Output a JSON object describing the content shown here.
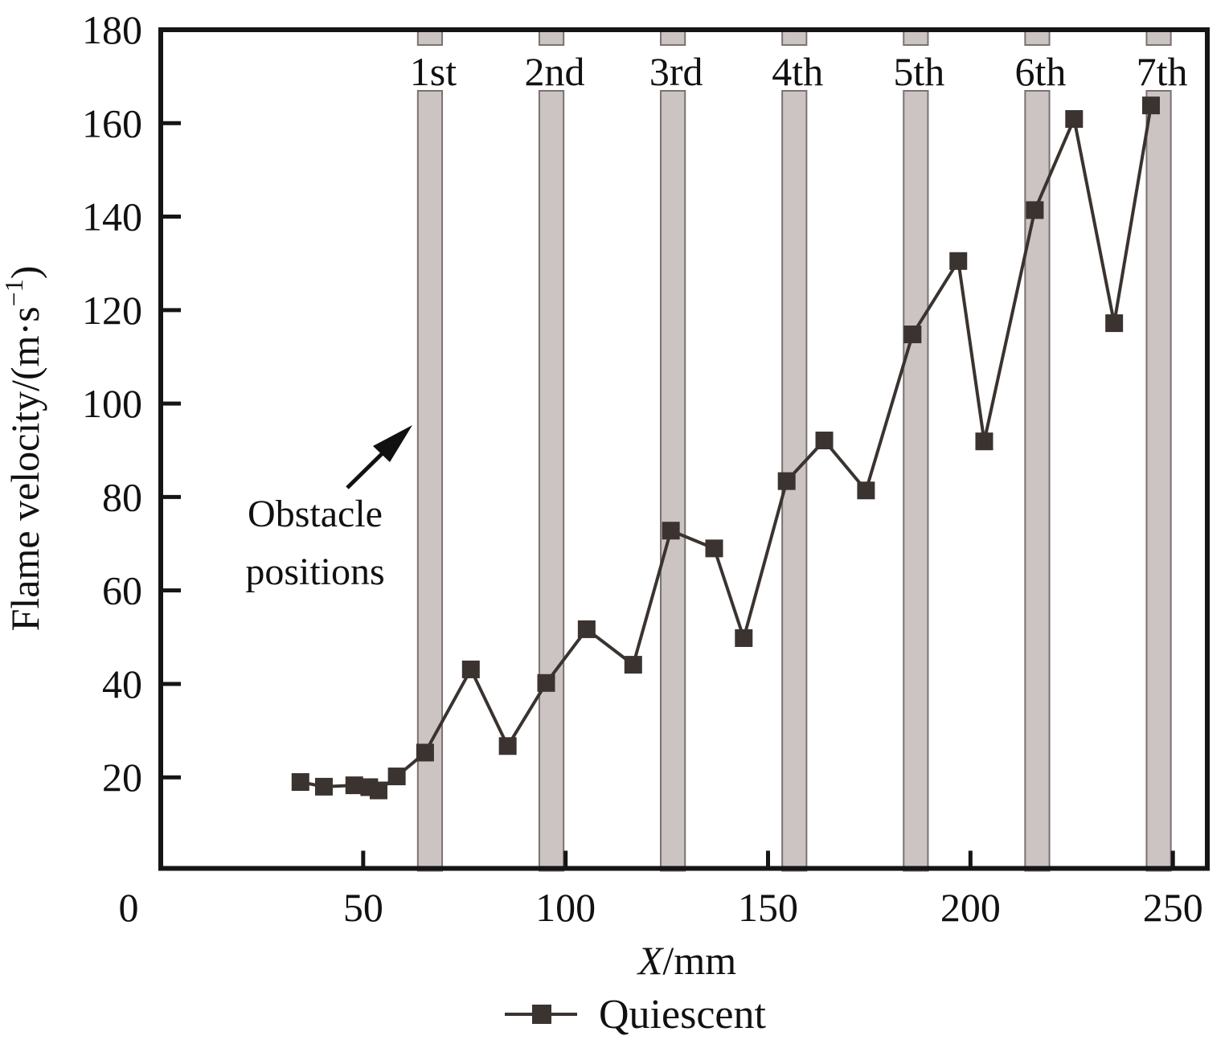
{
  "chart_data": {
    "type": "line",
    "title": "",
    "xlabel_var": "X",
    "xlabel_unit": "/mm",
    "ylabel": "Flame velocity/(m·s",
    "ylabel_sup": "−1",
    "ylabel_close": ")",
    "xlim": [
      0,
      258.5
    ],
    "ylim": [
      0,
      180
    ],
    "x_ticks": [
      0,
      50,
      100,
      150,
      200,
      250
    ],
    "x_tick_labels": [
      "0",
      "50",
      "100",
      "150",
      "200",
      "250"
    ],
    "y_ticks": [
      20,
      40,
      60,
      80,
      100,
      120,
      140,
      160,
      180
    ],
    "y_tick_labels": [
      "20",
      "40",
      "60",
      "80",
      "100",
      "120",
      "140",
      "160",
      "180"
    ],
    "grid": false,
    "legend_position": "bottom-center",
    "series": [
      {
        "name": "Quiescent",
        "marker": "square",
        "color": "#3a3330",
        "x": [
          34.5,
          40.3,
          47.8,
          51.5,
          53.8,
          58.3,
          65.3,
          76.6,
          85.7,
          95.2,
          105.2,
          116.7,
          126.0,
          136.7,
          144.0,
          154.6,
          163.9,
          174.2,
          185.7,
          197.0,
          203.4,
          215.9,
          225.6,
          235.5,
          244.6
        ],
        "y": [
          19.0,
          18.0,
          18.3,
          17.9,
          17.2,
          20.2,
          25.3,
          43.1,
          26.7,
          40.2,
          51.7,
          44.1,
          72.8,
          69.0,
          49.8,
          83.4,
          92.1,
          81.4,
          114.8,
          130.5,
          91.9,
          141.4,
          160.9,
          117.2,
          163.8
        ]
      }
    ],
    "obstacles": {
      "fill": "#cbc4c2",
      "stroke": "#7a7270",
      "width_mm": 6,
      "centers_mm": [
        66.5,
        96.5,
        126.5,
        156.5,
        186.5,
        216.5,
        246.5
      ],
      "labels": [
        "1st",
        "2nd",
        "3rd",
        "4th",
        "5th",
        "6th",
        "7th"
      ]
    },
    "annotations": [
      {
        "text_line1": "Obstacle",
        "text_line2": "positions",
        "arrow": true
      }
    ]
  }
}
